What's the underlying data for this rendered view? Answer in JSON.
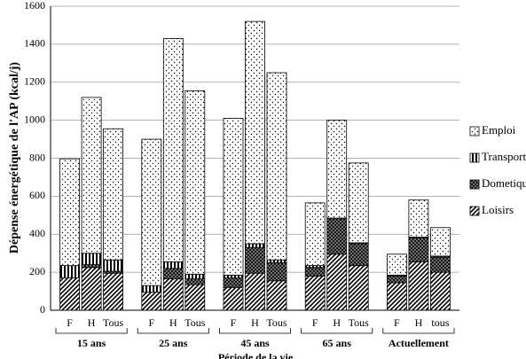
{
  "chart_data": {
    "type": "stacked-bar",
    "xlabel": "Période de la vie",
    "ylabel": "Dépense énergétique de l'AP (kcal/j)",
    "groups": [
      "15 ans",
      "25 ans",
      "45 ans",
      "65 ans",
      "Actuellement"
    ],
    "categories": [
      "F",
      "H",
      "Tous",
      "F",
      "H",
      "Tous",
      "F",
      "H",
      "Tous",
      "F",
      "H",
      "Tous",
      "F",
      "H",
      "tous"
    ],
    "series": [
      {
        "name": "Loisirs",
        "pattern": "diagonal",
        "values": [
          170,
          225,
          195,
          95,
          165,
          135,
          120,
          195,
          155,
          180,
          295,
          235,
          145,
          255,
          200
        ]
      },
      {
        "name": "Dometique",
        "pattern": "crosshatch",
        "values": [
          0,
          15,
          10,
          0,
          55,
          30,
          50,
          135,
          95,
          45,
          185,
          115,
          35,
          125,
          80
        ]
      },
      {
        "name": "Transport",
        "pattern": "vertical",
        "values": [
          65,
          60,
          60,
          35,
          35,
          25,
          15,
          20,
          15,
          10,
          5,
          5,
          5,
          5,
          5
        ]
      },
      {
        "name": "Emploi",
        "pattern": "dots",
        "values": [
          562,
          820,
          690,
          770,
          1175,
          965,
          825,
          1170,
          985,
          330,
          515,
          420,
          110,
          195,
          150
        ]
      }
    ],
    "ylim": [
      0,
      1600
    ],
    "yticks": [
      0,
      200,
      400,
      600,
      800,
      1000,
      1200,
      1400,
      1600
    ],
    "grid": true
  }
}
